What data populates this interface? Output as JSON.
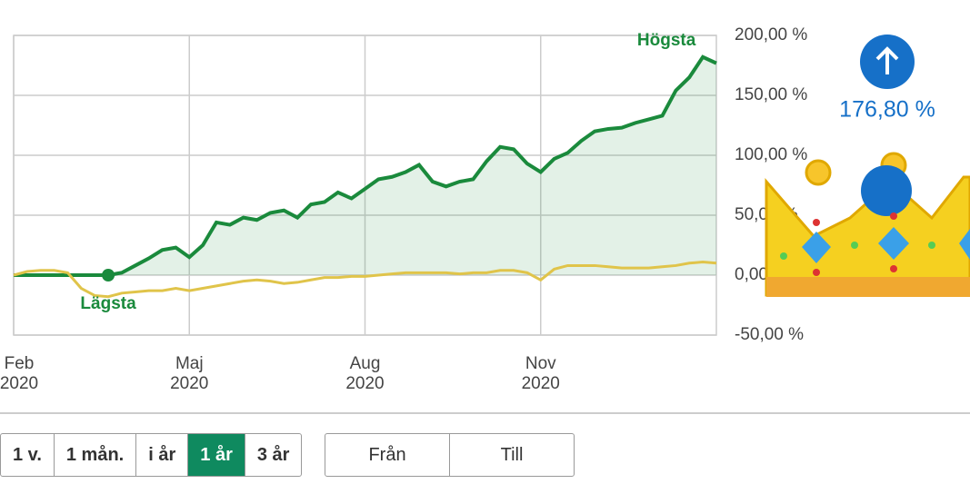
{
  "chart_data": {
    "type": "line",
    "categories": [
      "Feb 2020",
      null,
      null,
      null,
      null,
      null,
      null,
      null,
      null,
      null,
      null,
      null,
      null,
      "Maj 2020",
      null,
      null,
      null,
      null,
      null,
      null,
      null,
      null,
      null,
      null,
      null,
      null,
      "Aug 2020",
      null,
      null,
      null,
      null,
      null,
      null,
      null,
      null,
      null,
      null,
      null,
      null,
      "Nov 2020",
      null,
      null,
      null,
      null,
      null,
      null,
      null,
      null,
      null,
      null,
      null,
      null,
      null
    ],
    "series": [
      {
        "color": "#1a8a3c",
        "values": [
          0,
          0,
          0,
          0,
          0,
          0,
          0,
          0,
          2,
          8,
          14,
          21,
          23,
          15,
          25,
          44,
          42,
          48,
          46,
          52,
          54,
          48,
          59,
          61,
          69,
          64,
          72,
          80,
          82,
          86,
          92,
          78,
          74,
          78,
          80,
          95,
          107,
          105,
          93,
          86,
          97,
          102,
          112,
          120,
          122,
          123,
          127,
          130,
          133,
          154,
          165,
          182,
          176.8
        ]
      },
      {
        "color": "#e0c44a",
        "values": [
          0,
          3,
          4,
          4,
          2,
          -11,
          -17,
          -18,
          -15,
          -14,
          -13,
          -13,
          -11,
          -13,
          -11,
          -9,
          -7,
          -5,
          -4,
          -5,
          -7,
          -6,
          -4,
          -2,
          -2,
          -1,
          -1,
          0,
          1,
          2,
          2,
          2,
          2,
          1,
          2,
          2,
          4,
          4,
          2,
          -4,
          5,
          8,
          8,
          8,
          7,
          6,
          6,
          6,
          7,
          8,
          10,
          11,
          10
        ]
      }
    ],
    "ylim": [
      -50,
      200
    ],
    "yticks": [
      {
        "value": -50,
        "label": "-50,00 %"
      },
      {
        "value": 0,
        "label": "0,00 %"
      },
      {
        "value": 50,
        "label": "50,00 %"
      },
      {
        "value": 100,
        "label": "100,00 %"
      },
      {
        "value": 150,
        "label": "150,00 %"
      },
      {
        "value": 200,
        "label": "200,00 %"
      }
    ],
    "grid": true,
    "high_label": "Högsta",
    "low_label": "Lägsta",
    "latest": 176.8,
    "latest_label": "176,80 %"
  },
  "controls": {
    "periods": [
      "1 v.",
      "1 mån.",
      "i år",
      "1 år",
      "3 år"
    ],
    "active": 3,
    "range": [
      "Från",
      "Till"
    ]
  }
}
